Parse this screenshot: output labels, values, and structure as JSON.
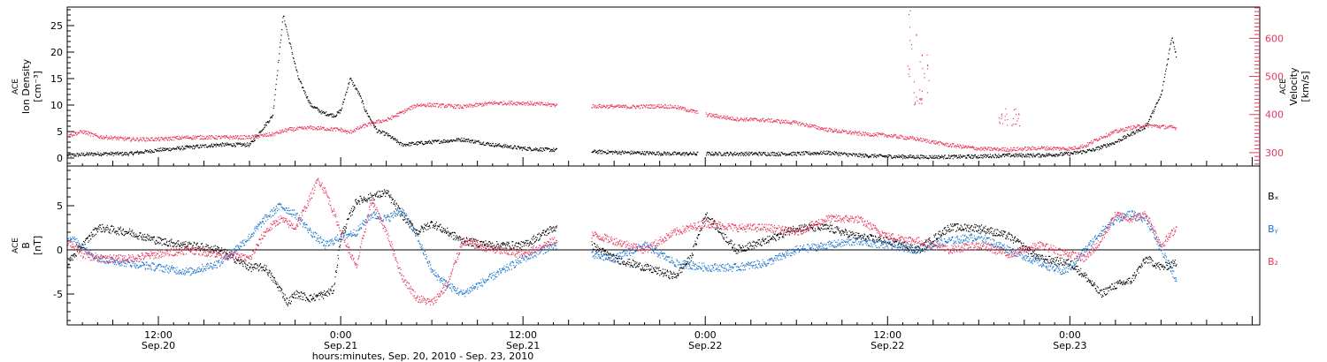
{
  "figure": {
    "xlabel": "hours:minutes, Sep. 20, 2010 - Sep. 23, 2010",
    "colors": {
      "black": "#000000",
      "pink": "#e8365d",
      "blue": "#1874cd"
    },
    "x_ticks": [
      {
        "hours": 12,
        "time": "12:00",
        "date": "Sep.20"
      },
      {
        "hours": 24,
        "time": "0:00",
        "date": "Sep.21"
      },
      {
        "hours": 36,
        "time": "12:00",
        "date": "Sep.21"
      },
      {
        "hours": 48,
        "time": "0:00",
        "date": "Sep.22"
      },
      {
        "hours": 60,
        "time": "12:00",
        "date": "Sep.22"
      },
      {
        "hours": 72,
        "time": "0:00",
        "date": "Sep.23"
      }
    ]
  },
  "chart_data": [
    {
      "type": "scatter",
      "panel": "plasma",
      "xlim": [
        6,
        84.5
      ],
      "ylabel_left": [
        "ACE",
        "Ion Density",
        "[cm⁻³]"
      ],
      "ylabel_right": [
        "ACE",
        "Velocity",
        "[km/s]"
      ],
      "ylim_left": [
        -1.5,
        28.5
      ],
      "ylim_right": [
        265,
        682
      ],
      "yticks_left": [
        0,
        5,
        10,
        15,
        20,
        25
      ],
      "yticks_right": [
        300,
        400,
        500,
        600
      ],
      "series": [
        {
          "axis": "left",
          "color": "black",
          "x": [
            6.0,
            8.0,
            10.0,
            12.0,
            14.0,
            16.0,
            18.0,
            19.5,
            20.2,
            20.6,
            21.2,
            22.0,
            22.8,
            23.6,
            24.0,
            24.6,
            25.2,
            25.6,
            26.4,
            27.0,
            28.0,
            30.0,
            32.0,
            34.0,
            36.0,
            38.0,
            40.5,
            43.0,
            46.0,
            48.0,
            50.0,
            52.0,
            54.0,
            56.0,
            58.0,
            60.0,
            62.0,
            64.0,
            66.0,
            68.0,
            70.0,
            72.0,
            73.5,
            75.0,
            76.0,
            77.0,
            77.5,
            78.0,
            78.7,
            79.0
          ],
          "y": [
            0.5,
            0.8,
            0.8,
            1.5,
            2.0,
            2.5,
            2.5,
            8.0,
            27.0,
            22.0,
            15.0,
            10.0,
            8.5,
            8.0,
            9.0,
            15.0,
            12.0,
            9.0,
            5.0,
            4.5,
            2.5,
            3.0,
            3.5,
            2.5,
            1.8,
            1.5,
            1.2,
            1.0,
            0.8,
            0.8,
            0.8,
            0.8,
            0.8,
            1.0,
            0.5,
            0.3,
            0.2,
            0.2,
            0.3,
            0.5,
            0.5,
            0.8,
            1.5,
            3.0,
            4.5,
            6.0,
            9.0,
            12.0,
            23.0,
            19.0
          ]
        },
        {
          "axis": "right",
          "color": "pink",
          "x": [
            6.0,
            7.0,
            8.0,
            10.0,
            12.0,
            14.0,
            16.0,
            18.0,
            19.5,
            20.5,
            22.0,
            24.0,
            24.5,
            25.5,
            26.5,
            27.0,
            28.0,
            29.0,
            30.0,
            32.0,
            34.0,
            36.0,
            38.0,
            40.5,
            43.0,
            45.0,
            46.0,
            47.0,
            48.0,
            50.0,
            52.0,
            54.0,
            56.0,
            58.0,
            60.0,
            62.0,
            64.0,
            66.0,
            68.0,
            70.0,
            72.0,
            73.0,
            74.0,
            75.0,
            76.0,
            77.0,
            78.0,
            79.0
          ],
          "y": [
            345,
            355,
            342,
            335,
            335,
            340,
            340,
            340,
            348,
            360,
            365,
            360,
            352,
            370,
            382,
            385,
            405,
            425,
            425,
            420,
            430,
            430,
            425,
            422,
            420,
            422,
            420,
            410,
            400,
            388,
            385,
            378,
            360,
            350,
            345,
            335,
            320,
            310,
            308,
            312,
            310,
            318,
            340,
            355,
            365,
            372,
            368,
            365
          ]
        }
      ],
      "gaps": [
        [
          38.2,
          40.5
        ],
        [
          47.5,
          48.0
        ]
      ],
      "outliers_right": [
        {
          "x": 61.6,
          "y": 680
        },
        {
          "x": 62.0,
          "y": 465
        },
        {
          "x": 62.4,
          "y": 560
        },
        {
          "x": 67.6,
          "y": 370
        },
        {
          "x": 68.4,
          "y": 365
        }
      ]
    },
    {
      "type": "scatter",
      "panel": "magnetic",
      "xlim": [
        6,
        84.5
      ],
      "ylabel_left": [
        "ACE",
        "B",
        "[nT]"
      ],
      "ylim": [
        -8.5,
        9.5
      ],
      "yticks": [
        -5,
        0,
        5
      ],
      "legend": [
        {
          "label": "Bₓ",
          "color": "black"
        },
        {
          "label": "Bᵧ",
          "color": "blue"
        },
        {
          "label": "B₂",
          "color": "pink"
        }
      ],
      "legend_placement": "right",
      "series": [
        {
          "name": "Bₓ",
          "color": "black",
          "x": [
            6.0,
            7.0,
            8.0,
            10.0,
            12.0,
            14.0,
            16.0,
            17.5,
            18.0,
            19.0,
            20.0,
            20.5,
            21.0,
            22.0,
            23.0,
            23.5,
            24.0,
            25.0,
            26.0,
            27.0,
            28.0,
            29.0,
            30.0,
            31.0,
            32.0,
            34.0,
            36.0,
            38.0,
            40.0,
            42.0,
            44.0,
            46.0,
            47.0,
            48.0,
            50.0,
            52.0,
            54.0,
            56.0,
            58.0,
            60.0,
            62.0,
            64.0,
            66.0,
            68.0,
            70.0,
            72.0,
            73.0,
            74.0,
            75.0,
            76.0,
            77.0,
            78.0,
            79.0
          ],
          "y": [
            -1.5,
            0.5,
            2.5,
            2.0,
            1.0,
            0.5,
            0.0,
            -1.5,
            -2.0,
            -2.0,
            -4.5,
            -6.0,
            -5.0,
            -5.5,
            -5.0,
            -4.5,
            1.5,
            5.5,
            6.0,
            6.5,
            4.0,
            2.0,
            3.0,
            2.0,
            1.0,
            0.5,
            0.5,
            2.5,
            1.0,
            -1.0,
            -2.0,
            -3.0,
            -1.0,
            4.0,
            0.0,
            1.0,
            2.5,
            2.5,
            1.5,
            1.0,
            0.0,
            2.5,
            2.5,
            1.5,
            -1.0,
            -1.5,
            -3.0,
            -5.0,
            -4.0,
            -3.5,
            -1.0,
            -2.0,
            -1.5
          ]
        },
        {
          "name": "Bᵧ",
          "color": "blue",
          "x": [
            6.0,
            7.0,
            8.0,
            10.0,
            12.0,
            14.0,
            16.0,
            18.0,
            19.0,
            20.0,
            21.0,
            22.0,
            23.0,
            24.0,
            25.0,
            26.0,
            27.0,
            28.0,
            29.0,
            30.0,
            31.0,
            32.0,
            33.0,
            34.0,
            36.0,
            38.0,
            40.0,
            42.0,
            44.0,
            46.0,
            48.0,
            50.0,
            52.0,
            54.0,
            56.0,
            58.0,
            60.0,
            62.0,
            64.0,
            66.0,
            68.0,
            70.0,
            71.5,
            72.0,
            73.0,
            74.0,
            75.0,
            76.0,
            77.0,
            78.0,
            79.0
          ],
          "y": [
            1.5,
            0.5,
            -1.0,
            -1.5,
            -2.0,
            -2.5,
            -1.5,
            1.5,
            3.5,
            5.0,
            4.0,
            2.0,
            0.5,
            1.5,
            2.0,
            4.0,
            3.5,
            4.5,
            1.5,
            -2.5,
            -4.0,
            -5.0,
            -4.0,
            -3.0,
            -1.0,
            0.5,
            -0.5,
            -1.0,
            0.5,
            -1.5,
            -2.0,
            -2.0,
            -1.5,
            0.0,
            0.5,
            1.0,
            0.5,
            0.0,
            1.0,
            1.5,
            0.0,
            -1.5,
            -2.5,
            -2.0,
            0.0,
            2.0,
            3.5,
            4.0,
            3.5,
            0.0,
            -3.5
          ]
        },
        {
          "name": "B₂",
          "color": "pink",
          "x": [
            6.0,
            7.0,
            8.0,
            10.0,
            12.0,
            14.0,
            16.0,
            18.0,
            19.0,
            20.0,
            21.0,
            22.0,
            22.5,
            23.0,
            24.0,
            25.0,
            26.0,
            27.0,
            28.0,
            29.0,
            30.0,
            31.0,
            32.0,
            34.0,
            36.0,
            38.0,
            40.0,
            42.0,
            44.0,
            46.0,
            48.0,
            50.0,
            52.0,
            54.0,
            56.0,
            58.0,
            60.0,
            62.0,
            64.0,
            66.0,
            68.0,
            70.0,
            72.0,
            73.0,
            74.0,
            75.0,
            76.0,
            77.0,
            78.0,
            79.0
          ],
          "y": [
            1.0,
            -0.5,
            -1.0,
            -1.0,
            -0.5,
            0.0,
            -0.5,
            -1.0,
            2.0,
            3.5,
            2.5,
            6.0,
            8.0,
            6.5,
            2.0,
            -2.0,
            5.5,
            2.0,
            -3.0,
            -5.5,
            -6.0,
            -4.0,
            1.0,
            0.0,
            -0.5,
            1.0,
            2.0,
            1.0,
            0.0,
            2.0,
            3.0,
            2.5,
            2.5,
            2.0,
            3.5,
            3.5,
            1.5,
            1.0,
            0.0,
            0.5,
            -0.5,
            0.5,
            -0.5,
            -1.0,
            1.0,
            4.0,
            3.5,
            4.0,
            0.5,
            2.5
          ]
        }
      ],
      "gaps": [
        [
          38.2,
          40.5
        ]
      ]
    }
  ]
}
